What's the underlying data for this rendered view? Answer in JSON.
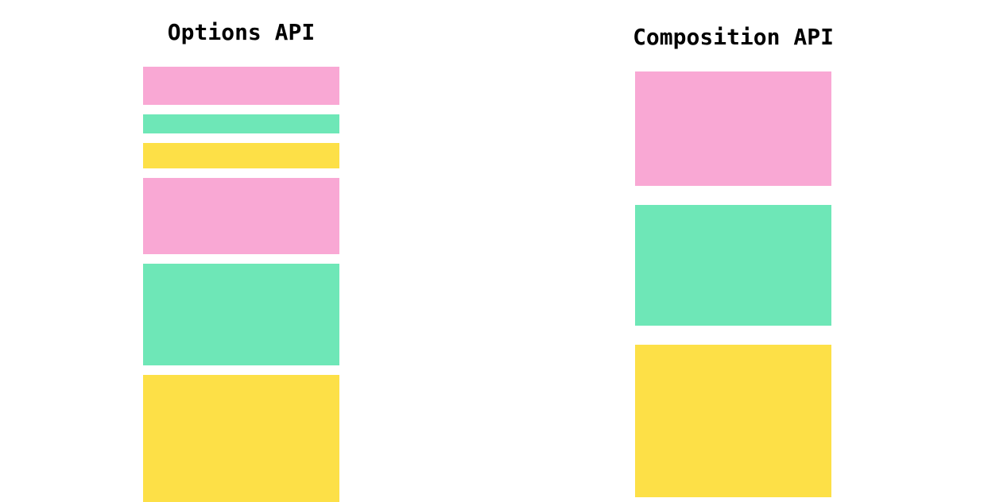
{
  "colors": {
    "pink": "#f9a8d4",
    "green": "#6ee7b7",
    "yellow": "#fde047"
  },
  "options_api": {
    "title": "Options API",
    "blocks": [
      "pink",
      "green",
      "yellow",
      "pink",
      "green",
      "yellow"
    ]
  },
  "composition_api": {
    "title": "Composition API",
    "blocks": [
      "pink",
      "green",
      "yellow"
    ]
  }
}
